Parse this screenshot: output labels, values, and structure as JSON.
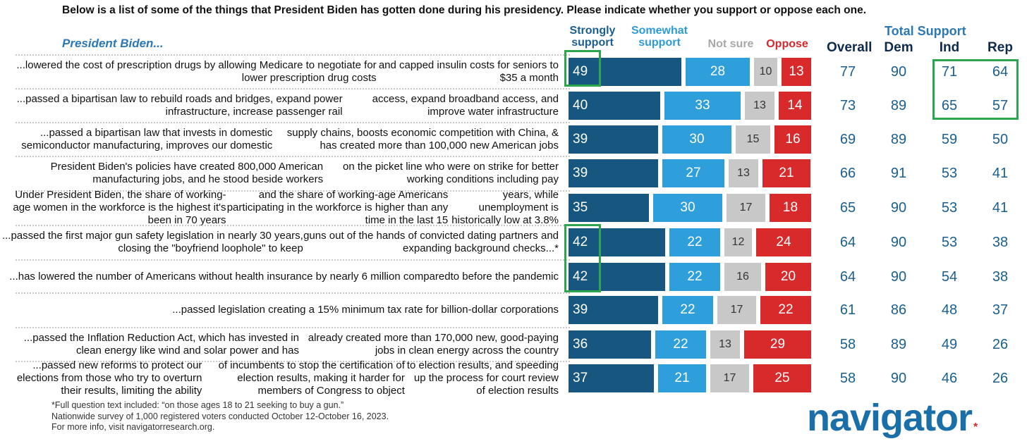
{
  "subtitle": "Below is a list of some of the things that President Biden has gotten done during his presidency. Please indicate whether you support or oppose each one.",
  "prefix": "President Biden...",
  "headers": {
    "strongly": "Strongly support",
    "somewhat": "Somewhat support",
    "not_sure": "Not sure",
    "oppose": "Oppose",
    "overall": "Overall",
    "total_support": "Total Support",
    "dem": "Dem",
    "ind": "Ind",
    "rep": "Rep"
  },
  "colors": {
    "strongly": "#17577f",
    "somewhat": "#2e9fdb",
    "not_sure": "#c8c8c8",
    "oppose": "#d92a2b",
    "highlight": "#2da44e"
  },
  "chart_data": {
    "type": "bar",
    "stacked": true,
    "orientation": "horizontal",
    "categories": [
      "...lowered the cost of prescription drugs by allowing Medicare to negotiate for lower prescription drug costs and capped insulin costs for seniors to $35 a month",
      "...passed a bipartisan law to rebuild roads and bridges, expand power infrastructure, increase passenger rail access, expand broadband access, and improve water infrastructure",
      "...passed a bipartisan law that invests in domestic semiconductor manufacturing, improves our domestic supply chains, boosts economic competition with China, & has created more than 100,000 new American jobs",
      "President Biden's policies have created 800,000 American manufacturing jobs, and he stood beside workers on the picket line who were on strike for better working conditions including pay",
      "Under President Biden, the share of working-age women in the workforce is the highest it's been in 70 years and the share of working-age Americans participating in the workforce is higher than any time in the last 15 years, while unemployment is historically low at 3.8%",
      "...passed the first major gun safety legislation in nearly 30 years, closing the \"boyfriend loophole\" to keep guns out of the hands of convicted dating partners and expanding background checks...*",
      "...has lowered the number of Americans without health insurance by nearly 6 million compared to before the pandemic",
      "...passed legislation creating a 15% minimum tax rate for billion-dollar corporations",
      "...passed the Inflation Reduction Act, which has invested in clean energy like wind and solar power and has already created more than 170,000 new, good-paying jobs in clean energy across the country",
      "...passed new reforms to protect our elections from those who try to overturn their results, limiting the ability of incumbents to stop the certification of election results, making it harder for members of Congress to object to election results, and speeding up the process for court review of election results"
    ],
    "label_lines": [
      [
        "...lowered the cost of prescription drugs by allowing Medicare to negotiate for lower prescription drug costs",
        "and capped insulin costs for seniors to $35 a month"
      ],
      [
        "...passed a bipartisan law to rebuild roads and bridges, expand power infrastructure, increase passenger rail",
        "access, expand broadband access, and improve water infrastructure"
      ],
      [
        "...passed a bipartisan law that invests in domestic semiconductor manufacturing, improves our domestic",
        "supply chains, boosts economic competition with China, & has created more than 100,000 new American jobs"
      ],
      [
        "President Biden's policies have created 800,000 American manufacturing jobs, and he stood beside workers",
        "on the picket line who were on strike for better working conditions including pay"
      ],
      [
        "Under President Biden, the share of working-age women in the workforce is the highest it's been in 70 years",
        "and the share of working-age Americans participating in the workforce is higher than any time in the last 15",
        "years, while unemployment is historically low at 3.8%"
      ],
      [
        "...passed the first major gun safety legislation in nearly 30 years, closing the \"boyfriend loophole\" to keep",
        "guns out of the hands of convicted dating partners and expanding background checks...*"
      ],
      [
        "...has lowered the number of Americans without health insurance by nearly 6 million compared",
        "to before the pandemic"
      ],
      [
        "...passed legislation creating a 15% minimum tax rate for billion-dollar corporations"
      ],
      [
        "...passed the Inflation Reduction Act, which has invested in clean energy like wind and solar power and has",
        "already created more than 170,000 new, good-paying jobs in clean energy across the country"
      ],
      [
        "...passed new reforms to protect our elections from those who try to overturn their results, limiting the ability",
        "of incumbents to stop the certification of election results, making it harder for members of Congress to object",
        "to election results, and speeding up the process for court review of election results"
      ]
    ],
    "series": [
      {
        "name": "Strongly support",
        "values": [
          49,
          40,
          39,
          39,
          35,
          42,
          42,
          39,
          36,
          37
        ]
      },
      {
        "name": "Somewhat support",
        "values": [
          28,
          33,
          30,
          27,
          30,
          22,
          22,
          22,
          22,
          21
        ]
      },
      {
        "name": "Not sure",
        "values": [
          10,
          13,
          15,
          13,
          17,
          12,
          16,
          17,
          13,
          17
        ]
      },
      {
        "name": "Oppose",
        "values": [
          13,
          14,
          16,
          21,
          18,
          24,
          20,
          22,
          29,
          25
        ]
      }
    ],
    "overall": [
      77,
      73,
      69,
      66,
      65,
      64,
      64,
      61,
      58,
      58
    ],
    "total_support": {
      "dem": [
        90,
        89,
        89,
        91,
        90,
        90,
        90,
        86,
        89,
        90
      ],
      "ind": [
        71,
        65,
        59,
        53,
        53,
        53,
        54,
        48,
        49,
        46
      ],
      "rep": [
        64,
        57,
        50,
        41,
        41,
        38,
        38,
        37,
        26,
        26
      ]
    },
    "xlim": [
      0,
      100
    ]
  },
  "footnotes": [
    "*Full question text included: “on those ages 18 to 21 seeking to buy a gun.”",
    "Nationwide survey of 1,000 registered voters conducted October 12-October 16, 2023.",
    "For more info, visit navigatorresearch.org."
  ],
  "logo": "navigator",
  "logo_mark": "*"
}
